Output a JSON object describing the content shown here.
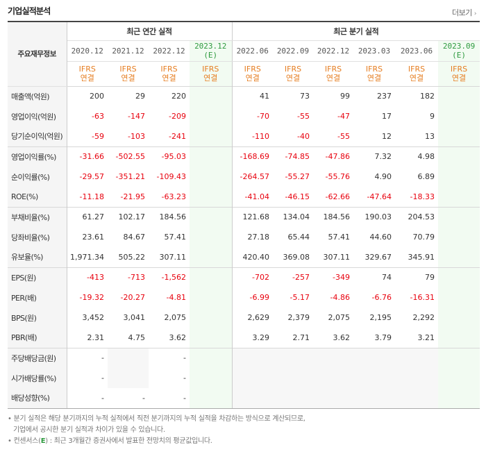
{
  "title": "기업실적분석",
  "more": "더보기",
  "header": {
    "row_label": "주요재무정보",
    "annual_group": "최근 연간 실적",
    "quarter_group": "최근 분기 실적",
    "accounting": "IFRS",
    "basis": "연결",
    "est_mark": "(E)"
  },
  "annual_columns": [
    {
      "period": "2020.12",
      "estimate": false
    },
    {
      "period": "2021.12",
      "estimate": false
    },
    {
      "period": "2022.12",
      "estimate": false
    },
    {
      "period": "2023.12",
      "estimate": true
    }
  ],
  "quarter_columns": [
    {
      "period": "2022.06",
      "estimate": false
    },
    {
      "period": "2022.09",
      "estimate": false
    },
    {
      "period": "2022.12",
      "estimate": false
    },
    {
      "period": "2023.03",
      "estimate": false
    },
    {
      "period": "2023.06",
      "estimate": false
    },
    {
      "period": "2023.09",
      "estimate": true
    }
  ],
  "rows": [
    {
      "label": "매출액(억원)",
      "annual": [
        "200",
        "29",
        "220",
        ""
      ],
      "quarter": [
        "41",
        "73",
        "99",
        "237",
        "182",
        ""
      ]
    },
    {
      "label": "영업이익(억원)",
      "annual": [
        "-63",
        "-147",
        "-209",
        ""
      ],
      "quarter": [
        "-70",
        "-55",
        "-47",
        "17",
        "9",
        ""
      ]
    },
    {
      "label": "당기순이익(억원)",
      "annual": [
        "-59",
        "-103",
        "-241",
        ""
      ],
      "quarter": [
        "-110",
        "-40",
        "-55",
        "12",
        "13",
        ""
      ]
    },
    {
      "label": "영업이익률(%)",
      "annual": [
        "-31.66",
        "-502.55",
        "-95.03",
        ""
      ],
      "quarter": [
        "-168.69",
        "-74.85",
        "-47.86",
        "7.32",
        "4.98",
        ""
      ]
    },
    {
      "label": "순이익률(%)",
      "annual": [
        "-29.57",
        "-351.21",
        "-109.43",
        ""
      ],
      "quarter": [
        "-264.57",
        "-55.27",
        "-55.76",
        "4.90",
        "6.89",
        ""
      ]
    },
    {
      "label": "ROE(%)",
      "annual": [
        "-11.18",
        "-21.95",
        "-63.23",
        ""
      ],
      "quarter": [
        "-41.04",
        "-46.15",
        "-62.66",
        "-47.64",
        "-18.33",
        ""
      ]
    },
    {
      "label": "부채비율(%)",
      "annual": [
        "61.27",
        "102.17",
        "184.56",
        ""
      ],
      "quarter": [
        "121.68",
        "134.04",
        "184.56",
        "190.03",
        "204.53",
        ""
      ]
    },
    {
      "label": "당좌비율(%)",
      "annual": [
        "23.61",
        "84.67",
        "57.41",
        ""
      ],
      "quarter": [
        "27.18",
        "65.44",
        "57.41",
        "44.60",
        "70.79",
        ""
      ]
    },
    {
      "label": "유보율(%)",
      "annual": [
        "1,971.34",
        "505.22",
        "307.11",
        ""
      ],
      "quarter": [
        "420.40",
        "369.08",
        "307.11",
        "329.67",
        "345.91",
        ""
      ]
    },
    {
      "label": "EPS(원)",
      "annual": [
        "-413",
        "-713",
        "-1,562",
        ""
      ],
      "quarter": [
        "-702",
        "-257",
        "-349",
        "74",
        "79",
        ""
      ]
    },
    {
      "label": "PER(배)",
      "annual": [
        "-19.32",
        "-20.27",
        "-4.81",
        ""
      ],
      "quarter": [
        "-6.99",
        "-5.17",
        "-4.86",
        "-6.76",
        "-16.31",
        ""
      ]
    },
    {
      "label": "BPS(원)",
      "annual": [
        "3,452",
        "3,041",
        "2,075",
        ""
      ],
      "quarter": [
        "2,629",
        "2,379",
        "2,075",
        "2,195",
        "2,292",
        ""
      ]
    },
    {
      "label": "PBR(배)",
      "annual": [
        "2.31",
        "4.75",
        "3.62",
        ""
      ],
      "quarter": [
        "3.29",
        "2.71",
        "3.62",
        "3.79",
        "3.21",
        ""
      ]
    },
    {
      "label": "주당배당금(원)",
      "annual": [
        "-",
        null,
        "-",
        ""
      ],
      "quarter": [
        null,
        null,
        null,
        null,
        null,
        ""
      ]
    },
    {
      "label": "시가배당률(%)",
      "annual": [
        "-",
        null,
        "-",
        ""
      ],
      "quarter": [
        null,
        null,
        null,
        null,
        null,
        ""
      ]
    },
    {
      "label": "배당성향(%)",
      "annual": [
        "-",
        "-",
        "-",
        ""
      ],
      "quarter": [
        null,
        null,
        null,
        null,
        null,
        ""
      ]
    }
  ],
  "notes": {
    "line1": "분기 실적은 해당 분기까지의 누적 실적에서 직전 분기까지의 누적 실적을 차감하는 방식으로 계산되므로,",
    "line2": "기업에서 공시한 분기 실적과 차이가 있을 수 있습니다.",
    "line3_prefix": "컨센서스(",
    "line3_mark": "E",
    "line3_suffix": ") : 최근 3개월간 증권사에서 발표한 전망치의 평균값입니다."
  }
}
